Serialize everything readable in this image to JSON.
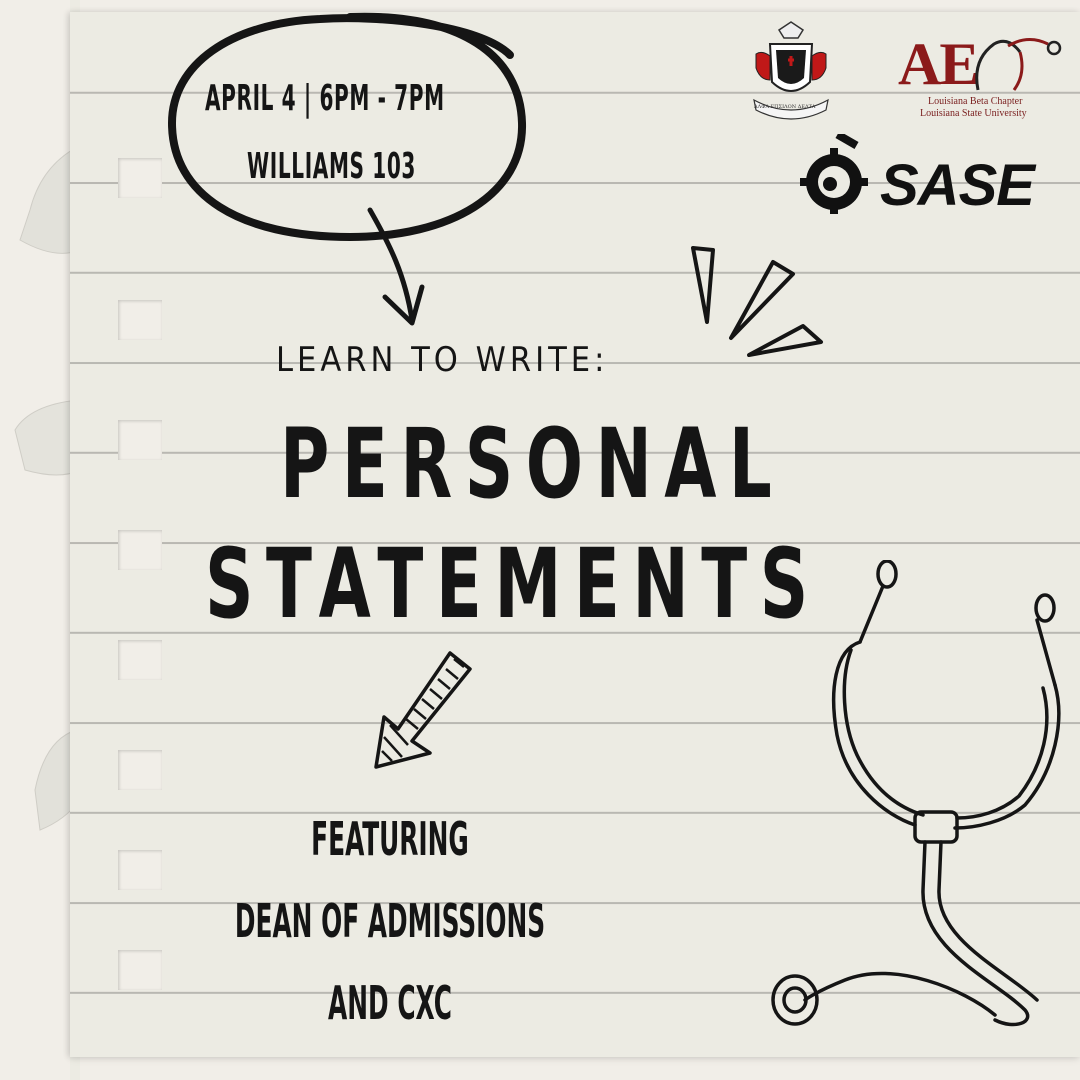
{
  "event": {
    "date_line": "APRIL 4 | 6PM - 7PM",
    "location": "WILLIAMS 103"
  },
  "headline": {
    "kicker": "LEARN TO WRITE:",
    "title_line1": "PERSONAL",
    "title_line2": "STATEMENTS"
  },
  "featuring": {
    "line1": "FEATURING",
    "line2": "DEAN OF ADMISSIONS",
    "line3": "AND CXC"
  },
  "logos": {
    "ae_letters": "AE",
    "ae_chapter": "Louisiana Beta Chapter",
    "ae_university": "Louisiana State University",
    "sase": "SASE",
    "crest_motto": "ΑΛΦΑ  ΕΠΣΙΛΟΝ  ΔΕΛΤΑ"
  },
  "colors": {
    "paper": "#ecebe3",
    "background": "#f1eee8",
    "ink": "#151515",
    "ae_red": "#8b1a1a"
  },
  "icons": [
    "stethoscope-icon",
    "arrow-down-icon",
    "arrow-down-left-icon",
    "burst-lines-icon",
    "crest-icon"
  ]
}
